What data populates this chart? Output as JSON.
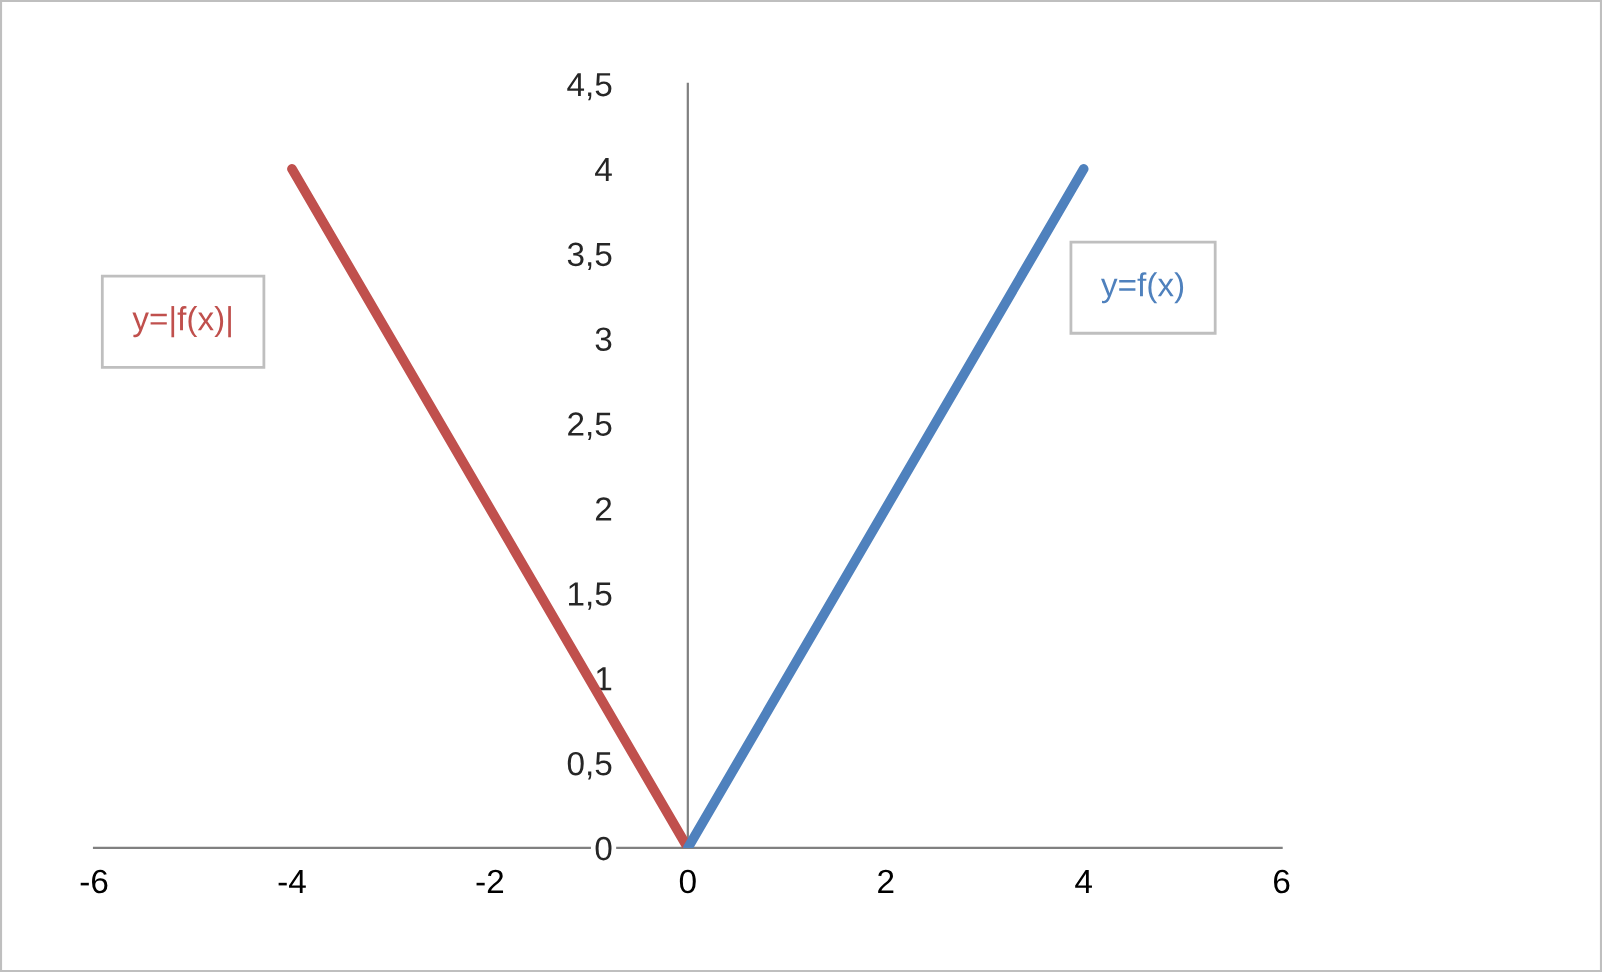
{
  "chart_data": {
    "type": "line",
    "series": [
      {
        "name": "y=|f(x)|",
        "color": "#c0504d",
        "x": [
          -4,
          0
        ],
        "values": [
          4,
          0
        ]
      },
      {
        "name": "y=f(x)",
        "color": "#4f81bd",
        "x": [
          0,
          4
        ],
        "values": [
          0,
          4
        ]
      }
    ],
    "xlim": [
      -6,
      6
    ],
    "xticks": [
      {
        "value": -6,
        "label": "-6"
      },
      {
        "value": -4,
        "label": "-4"
      },
      {
        "value": -2,
        "label": "-2"
      },
      0,
      2,
      4,
      6
    ],
    "ylim": [
      0,
      4.5
    ],
    "yticks": [
      0,
      {
        "value": 0.5,
        "label": "0,5"
      },
      1,
      {
        "value": 1.5,
        "label": "1,5"
      },
      2,
      {
        "value": 2.5,
        "label": "2,5"
      },
      3,
      {
        "value": 3.5,
        "label": "3,5"
      },
      4,
      {
        "value": 4.5,
        "label": "4,5"
      }
    ],
    "grid": false,
    "legend": false,
    "marker": "none",
    "line_style": "solid"
  }
}
